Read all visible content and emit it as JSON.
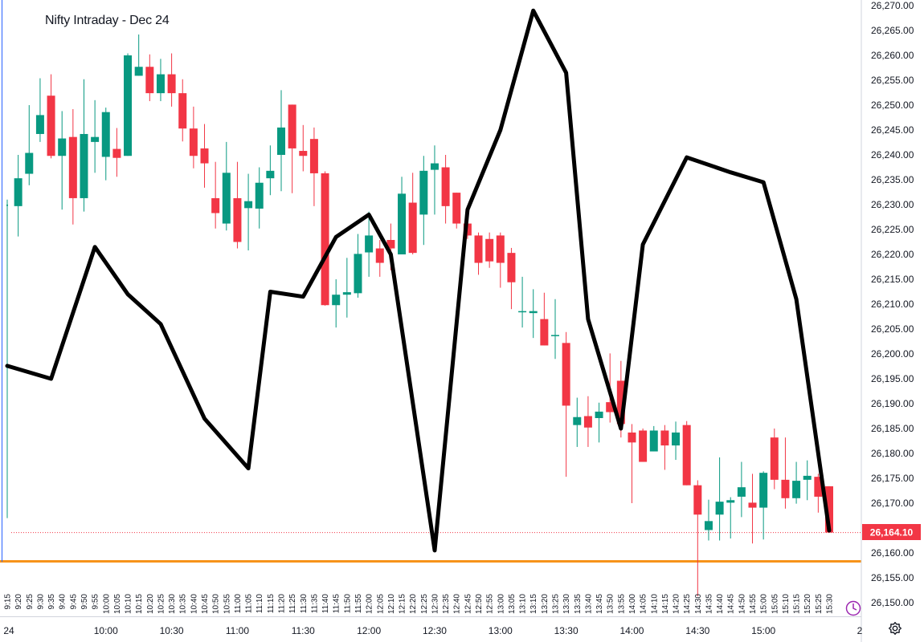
{
  "chart_data": {
    "type": "candlestick",
    "title": "Nifty Intraday - Dec 24",
    "last_price_label": "26,164.10",
    "colors": {
      "up": "#089981",
      "down": "#f23645",
      "overlay_line": "#000000",
      "support_line": "#f7931a",
      "last_price_line": "#f23645"
    },
    "ylim": [
      26148,
      26270
    ],
    "y_ticks": [
      "26,150.00",
      "26,155.00",
      "26,160.00",
      "26,165.00",
      "26,170.00",
      "26,175.00",
      "26,180.00",
      "26,185.00",
      "26,190.00",
      "26,195.00",
      "26,200.00",
      "26,205.00",
      "26,210.00",
      "26,215.00",
      "26,220.00",
      "26,225.00",
      "26,230.00",
      "26,235.00",
      "26,240.00",
      "26,245.00",
      "26,250.00",
      "26,255.00",
      "26,260.00",
      "26,265.00",
      "26,270.00"
    ],
    "x_ticks": [
      "9:15",
      "9:20",
      "9:25",
      "9:30",
      "9:35",
      "9:40",
      "9:45",
      "9:50",
      "9:55",
      "10:00",
      "10:05",
      "10:10",
      "10:15",
      "10:20",
      "10:25",
      "10:30",
      "10:35",
      "10:40",
      "10:45",
      "10:50",
      "10:55",
      "11:00",
      "11:05",
      "11:10",
      "11:15",
      "11:20",
      "11:25",
      "11:30",
      "11:35",
      "11:40",
      "11:45",
      "11:50",
      "11:55",
      "12:00",
      "12:05",
      "12:10",
      "12:15",
      "12:20",
      "12:25",
      "12:30",
      "12:35",
      "12:40",
      "12:45",
      "12:50",
      "12:55",
      "13:00",
      "13:05",
      "13:10",
      "13:15",
      "13:20",
      "13:25",
      "13:30",
      "13:35",
      "13:40",
      "13:45",
      "13:50",
      "13:55",
      "14:00",
      "14:05",
      "14:10",
      "14:15",
      "14:20",
      "14:25",
      "14:30",
      "14:35",
      "14:40",
      "14:45",
      "14:50",
      "14:55",
      "15:00",
      "15:05",
      "15:10",
      "15:15",
      "15:20",
      "15:25",
      "15:30"
    ],
    "x_major": [
      "24",
      "10:00",
      "10:30",
      "11:00",
      "11:30",
      "12:00",
      "12:30",
      "13:00",
      "13:30",
      "14:00",
      "14:30",
      "15:00",
      "2"
    ],
    "support_level": 26158.3,
    "last_price": 26164.1,
    "candles": [
      {
        "t": "9:15",
        "o": 26230,
        "h": 26231,
        "l": 26167,
        "c": 26230
      },
      {
        "t": "9:20",
        "o": 26229.7,
        "h": 26240,
        "l": 26223.6,
        "c": 26235.3
      },
      {
        "t": "9:25",
        "o": 26236.2,
        "h": 26250,
        "l": 26233.9,
        "c": 26240.4
      },
      {
        "t": "9:30",
        "o": 26244.2,
        "h": 26255.4,
        "l": 26242.6,
        "c": 26248
      },
      {
        "t": "9:35",
        "o": 26251.9,
        "h": 26256.2,
        "l": 26239.3,
        "c": 26239.8
      },
      {
        "t": "9:40",
        "o": 26239.8,
        "h": 26248.8,
        "l": 26229,
        "c": 26243.3
      },
      {
        "t": "9:45",
        "o": 26243.6,
        "h": 26249.2,
        "l": 26226,
        "c": 26231.3
      },
      {
        "t": "9:50",
        "o": 26231.3,
        "h": 26255.2,
        "l": 26228.6,
        "c": 26244.2
      },
      {
        "t": "9:55",
        "o": 26242.6,
        "h": 26251,
        "l": 26236.4,
        "c": 26243.6
      },
      {
        "t": "10:00",
        "o": 26239.6,
        "h": 26249.5,
        "l": 26234.9,
        "c": 26248.6
      },
      {
        "t": "10:05",
        "o": 26241.2,
        "h": 26245.4,
        "l": 26235.6,
        "c": 26239.4
      },
      {
        "t": "10:10",
        "o": 26239.8,
        "h": 26260.4,
        "l": 26239.8,
        "c": 26260
      },
      {
        "t": "10:15",
        "o": 26255.9,
        "h": 26264.2,
        "l": 26255.9,
        "c": 26257.7
      },
      {
        "t": "10:20",
        "o": 26257.7,
        "h": 26260.2,
        "l": 26250.8,
        "c": 26252.4
      },
      {
        "t": "10:25",
        "o": 26252.4,
        "h": 26259.3,
        "l": 26250.8,
        "c": 26256.2
      },
      {
        "t": "10:30",
        "o": 26256.2,
        "h": 26260.4,
        "l": 26249.7,
        "c": 26252.4
      },
      {
        "t": "10:35",
        "o": 26252.4,
        "h": 26255.2,
        "l": 26242.7,
        "c": 26245.3
      },
      {
        "t": "10:40",
        "o": 26245.3,
        "h": 26249.7,
        "l": 26237.3,
        "c": 26239.8
      },
      {
        "t": "10:45",
        "o": 26241.3,
        "h": 26246.2,
        "l": 26233.4,
        "c": 26238.3
      },
      {
        "t": "10:50",
        "o": 26231.3,
        "h": 26238.6,
        "l": 26225.2,
        "c": 26228.3
      },
      {
        "t": "10:55",
        "o": 26226.2,
        "h": 26242.6,
        "l": 26224.8,
        "c": 26236.4
      },
      {
        "t": "11:00",
        "o": 26231.3,
        "h": 26238.6,
        "l": 26221.2,
        "c": 26222.5
      },
      {
        "t": "11:05",
        "o": 26229.3,
        "h": 26236.2,
        "l": 26220.8,
        "c": 26230.7
      },
      {
        "t": "11:10",
        "o": 26229.2,
        "h": 26237.5,
        "l": 26225.2,
        "c": 26234.4
      },
      {
        "t": "11:15",
        "o": 26235.3,
        "h": 26241.9,
        "l": 26231.9,
        "c": 26236.8
      },
      {
        "t": "11:20",
        "o": 26240,
        "h": 26253,
        "l": 26232.7,
        "c": 26245.5
      },
      {
        "t": "11:25",
        "o": 26250.1,
        "h": 26250.1,
        "l": 26232.3,
        "c": 26241.3
      },
      {
        "t": "11:30",
        "o": 26240.8,
        "h": 26246,
        "l": 26236.7,
        "c": 26239.8
      },
      {
        "t": "11:35",
        "o": 26243.2,
        "h": 26245.5,
        "l": 26229.7,
        "c": 26236.3
      },
      {
        "t": "11:40",
        "o": 26236.3,
        "h": 26236.7,
        "l": 26209.7,
        "c": 26209.8
      },
      {
        "t": "11:45",
        "o": 26209.8,
        "h": 26215,
        "l": 26205.3,
        "c": 26211.9
      },
      {
        "t": "11:50",
        "o": 26211.9,
        "h": 26219.3,
        "l": 26207.3,
        "c": 26212.4
      },
      {
        "t": "11:55",
        "o": 26212.2,
        "h": 26224.1,
        "l": 26211.3,
        "c": 26220.1
      },
      {
        "t": "12:00",
        "o": 26220.4,
        "h": 26228.6,
        "l": 26215.5,
        "c": 26223.8
      },
      {
        "t": "12:05",
        "o": 26221.2,
        "h": 26222.9,
        "l": 26215.5,
        "c": 26218.3
      },
      {
        "t": "12:10",
        "o": 26222.9,
        "h": 26226.2,
        "l": 26216.8,
        "c": 26221.2
      },
      {
        "t": "12:15",
        "o": 26220,
        "h": 26235.6,
        "l": 26220,
        "c": 26232.2
      },
      {
        "t": "12:20",
        "o": 26230.4,
        "h": 26236.4,
        "l": 26220,
        "c": 26220.3
      },
      {
        "t": "12:25",
        "o": 26228,
        "h": 26239.8,
        "l": 26221.9,
        "c": 26236.8
      },
      {
        "t": "12:30",
        "o": 26237,
        "h": 26241.9,
        "l": 26228,
        "c": 26238.3
      },
      {
        "t": "12:35",
        "o": 26237.5,
        "h": 26240,
        "l": 26226.2,
        "c": 26229.7
      },
      {
        "t": "12:40",
        "o": 26232.4,
        "h": 26232.4,
        "l": 26225.2,
        "c": 26226.2
      },
      {
        "t": "12:45",
        "o": 26226.2,
        "h": 26229.7,
        "l": 26223.1,
        "c": 26223.8
      },
      {
        "t": "12:50",
        "o": 26223.8,
        "h": 26224.4,
        "l": 26215.9,
        "c": 26218.3
      },
      {
        "t": "12:55",
        "o": 26223.1,
        "h": 26224.4,
        "l": 26217.3,
        "c": 26218.6
      },
      {
        "t": "13:00",
        "o": 26223.8,
        "h": 26224.4,
        "l": 26213.3,
        "c": 26218.3
      },
      {
        "t": "13:05",
        "o": 26220.3,
        "h": 26221.3,
        "l": 26209,
        "c": 26214.4
      },
      {
        "t": "13:10",
        "o": 26208.6,
        "h": 26215.5,
        "l": 26205.3,
        "c": 26208.6
      },
      {
        "t": "13:15",
        "o": 26208.2,
        "h": 26213,
        "l": 26203.2,
        "c": 26208.6
      },
      {
        "t": "13:20",
        "o": 26207,
        "h": 26212.3,
        "l": 26201.7,
        "c": 26201.7
      },
      {
        "t": "13:25",
        "o": 26203.6,
        "h": 26211,
        "l": 26199,
        "c": 26203.8
      },
      {
        "t": "13:30",
        "o": 26202.2,
        "h": 26204.4,
        "l": 26175.3,
        "c": 26189.6
      },
      {
        "t": "13:35",
        "o": 26185.7,
        "h": 26191.2,
        "l": 26181.3,
        "c": 26187.3
      },
      {
        "t": "13:40",
        "o": 26187.5,
        "h": 26191.5,
        "l": 26181.3,
        "c": 26185.2
      },
      {
        "t": "13:45",
        "o": 26187.1,
        "h": 26190.2,
        "l": 26182.2,
        "c": 26188.4
      },
      {
        "t": "13:50",
        "o": 26190.3,
        "h": 26200.1,
        "l": 26186.2,
        "c": 26188.3
      },
      {
        "t": "13:55",
        "o": 26194.6,
        "h": 26198.6,
        "l": 26183.2,
        "c": 26185.9
      },
      {
        "t": "14:00",
        "o": 26184.2,
        "h": 26185.9,
        "l": 26170,
        "c": 26182.2
      },
      {
        "t": "14:05",
        "o": 26184.6,
        "h": 26185,
        "l": 26178.3,
        "c": 26178.3
      },
      {
        "t": "14:10",
        "o": 26180.4,
        "h": 26185.5,
        "l": 26180.4,
        "c": 26184.6
      },
      {
        "t": "14:15",
        "o": 26184.6,
        "h": 26185.7,
        "l": 26176.7,
        "c": 26181.6
      },
      {
        "t": "14:20",
        "o": 26181.6,
        "h": 26186.4,
        "l": 26178.7,
        "c": 26184.2
      },
      {
        "t": "14:25",
        "o": 26185.7,
        "h": 26186.5,
        "l": 26173.6,
        "c": 26173.6
      },
      {
        "t": "14:30",
        "o": 26173.6,
        "h": 26174.6,
        "l": 26151.3,
        "c": 26167.7
      },
      {
        "t": "14:35",
        "o": 26164.6,
        "h": 26170.7,
        "l": 26162.5,
        "c": 26166.4
      },
      {
        "t": "14:40",
        "o": 26167.7,
        "h": 26179.2,
        "l": 26162.5,
        "c": 26170.3
      },
      {
        "t": "14:45",
        "o": 26170.1,
        "h": 26171.2,
        "l": 26162.9,
        "c": 26170.6
      },
      {
        "t": "14:50",
        "o": 26171.3,
        "h": 26178.3,
        "l": 26167.2,
        "c": 26173.2
      },
      {
        "t": "14:55",
        "o": 26170.1,
        "h": 26175.9,
        "l": 26161.9,
        "c": 26169.1
      },
      {
        "t": "15:00",
        "o": 26169.1,
        "h": 26176.4,
        "l": 26162.7,
        "c": 26176.1
      },
      {
        "t": "15:05",
        "o": 26183.2,
        "h": 26185,
        "l": 26172.8,
        "c": 26174.7
      },
      {
        "t": "15:10",
        "o": 26174.7,
        "h": 26183.2,
        "l": 26168.9,
        "c": 26171
      },
      {
        "t": "15:15",
        "o": 26171,
        "h": 26178.3,
        "l": 26169.9,
        "c": 26174.5
      },
      {
        "t": "15:20",
        "o": 26174.7,
        "h": 26178.6,
        "l": 26170.6,
        "c": 26175.5
      },
      {
        "t": "15:25",
        "o": 26175.3,
        "h": 26175.9,
        "l": 26168.1,
        "c": 26171.3
      },
      {
        "t": "15:30",
        "o": 26173.4,
        "h": 26173.4,
        "l": 26164.1,
        "c": 26164.1
      }
    ],
    "overlay_line": [
      {
        "t": "9:15",
        "v": 26197.6
      },
      {
        "t": "9:35",
        "v": 26195
      },
      {
        "t": "9:55",
        "v": 26221.5
      },
      {
        "t": "10:10",
        "v": 26212
      },
      {
        "t": "10:25",
        "v": 26206
      },
      {
        "t": "10:45",
        "v": 26187
      },
      {
        "t": "11:05",
        "v": 26177
      },
      {
        "t": "11:15",
        "v": 26212.5
      },
      {
        "t": "11:30",
        "v": 26211.5
      },
      {
        "t": "11:45",
        "v": 26223.5
      },
      {
        "t": "12:00",
        "v": 26228
      },
      {
        "t": "12:10",
        "v": 26220
      },
      {
        "t": "12:30",
        "v": 26160.5
      },
      {
        "t": "12:45",
        "v": 26229
      },
      {
        "t": "13:00",
        "v": 26245
      },
      {
        "t": "13:15",
        "v": 26269
      },
      {
        "t": "13:30",
        "v": 26256.5
      },
      {
        "t": "13:40",
        "v": 26207
      },
      {
        "t": "13:55",
        "v": 26185
      },
      {
        "t": "14:05",
        "v": 26222
      },
      {
        "t": "14:25",
        "v": 26239.5
      },
      {
        "t": "14:45",
        "v": 26236.5
      },
      {
        "t": "15:00",
        "v": 26234.5
      },
      {
        "t": "15:15",
        "v": 26211
      },
      {
        "t": "15:30",
        "v": 26164.5
      }
    ]
  }
}
